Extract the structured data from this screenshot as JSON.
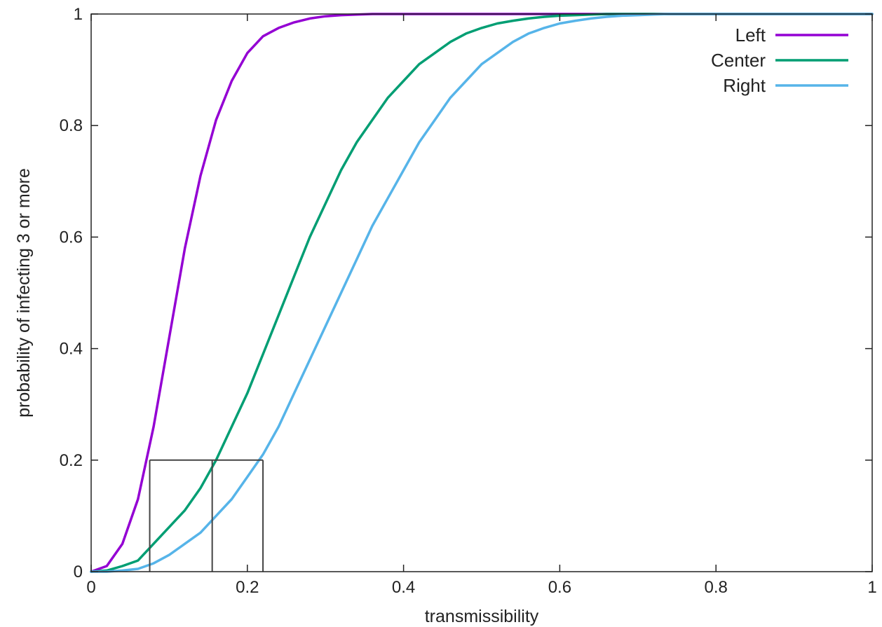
{
  "chart_data": {
    "type": "line",
    "xlabel": "transmissibility",
    "ylabel": "probability of infecting 3 or more",
    "xlim": [
      0,
      1
    ],
    "ylim": [
      0,
      1
    ],
    "xticks": [
      0,
      0.2,
      0.4,
      0.6,
      0.8,
      1
    ],
    "xtick_labels": [
      "0",
      "0.2",
      "0.4",
      "0.6",
      "0.8",
      "1"
    ],
    "yticks": [
      0,
      0.2,
      0.4,
      0.6,
      0.8,
      1
    ],
    "ytick_labels": [
      "0",
      "0.2",
      "0.4",
      "0.6",
      "0.8",
      "1"
    ],
    "grid": false,
    "legend_position": "top-right",
    "x": [
      0,
      0.02,
      0.04,
      0.06,
      0.08,
      0.1,
      0.12,
      0.14,
      0.16,
      0.18,
      0.2,
      0.22,
      0.24,
      0.26,
      0.28,
      0.3,
      0.32,
      0.34,
      0.36,
      0.38,
      0.4,
      0.42,
      0.44,
      0.46,
      0.48,
      0.5,
      0.52,
      0.54,
      0.56,
      0.58,
      0.6,
      0.62,
      0.64,
      0.66,
      0.68,
      0.7,
      0.72,
      0.74,
      0.76,
      0.78,
      0.8,
      0.85,
      0.9,
      0.95,
      1
    ],
    "series": [
      {
        "name": "Left",
        "color": "#9400d3",
        "values": [
          0,
          0.01,
          0.05,
          0.13,
          0.26,
          0.42,
          0.58,
          0.71,
          0.81,
          0.88,
          0.93,
          0.96,
          0.975,
          0.985,
          0.992,
          0.996,
          0.998,
          0.999,
          1,
          1,
          1,
          1,
          1,
          1,
          1,
          1,
          1,
          1,
          1,
          1,
          1,
          1,
          1,
          1,
          1,
          1,
          1,
          1,
          1,
          1,
          1,
          1,
          1,
          1,
          1
        ]
      },
      {
        "name": "Center",
        "color": "#009e73",
        "values": [
          0,
          0.002,
          0.01,
          0.02,
          0.05,
          0.08,
          0.11,
          0.15,
          0.2,
          0.26,
          0.32,
          0.39,
          0.46,
          0.53,
          0.6,
          0.66,
          0.72,
          0.77,
          0.81,
          0.85,
          0.88,
          0.91,
          0.93,
          0.95,
          0.965,
          0.975,
          0.983,
          0.988,
          0.992,
          0.995,
          0.997,
          0.998,
          0.999,
          1,
          1,
          1,
          1,
          1,
          1,
          1,
          1,
          1,
          1,
          1,
          1
        ]
      },
      {
        "name": "Right",
        "color": "#56b4e9",
        "values": [
          0,
          0,
          0.002,
          0.005,
          0.015,
          0.03,
          0.05,
          0.07,
          0.1,
          0.13,
          0.17,
          0.21,
          0.26,
          0.32,
          0.38,
          0.44,
          0.5,
          0.56,
          0.62,
          0.67,
          0.72,
          0.77,
          0.81,
          0.85,
          0.88,
          0.91,
          0.93,
          0.95,
          0.965,
          0.975,
          0.983,
          0.988,
          0.992,
          0.995,
          0.997,
          0.998,
          0.999,
          1,
          1,
          1,
          1,
          1,
          1,
          1,
          1
        ]
      }
    ],
    "annotations": {
      "threshold_y": 0.2,
      "threshold_x": [
        0.075,
        0.155,
        0.22
      ],
      "color": "#444444"
    }
  }
}
